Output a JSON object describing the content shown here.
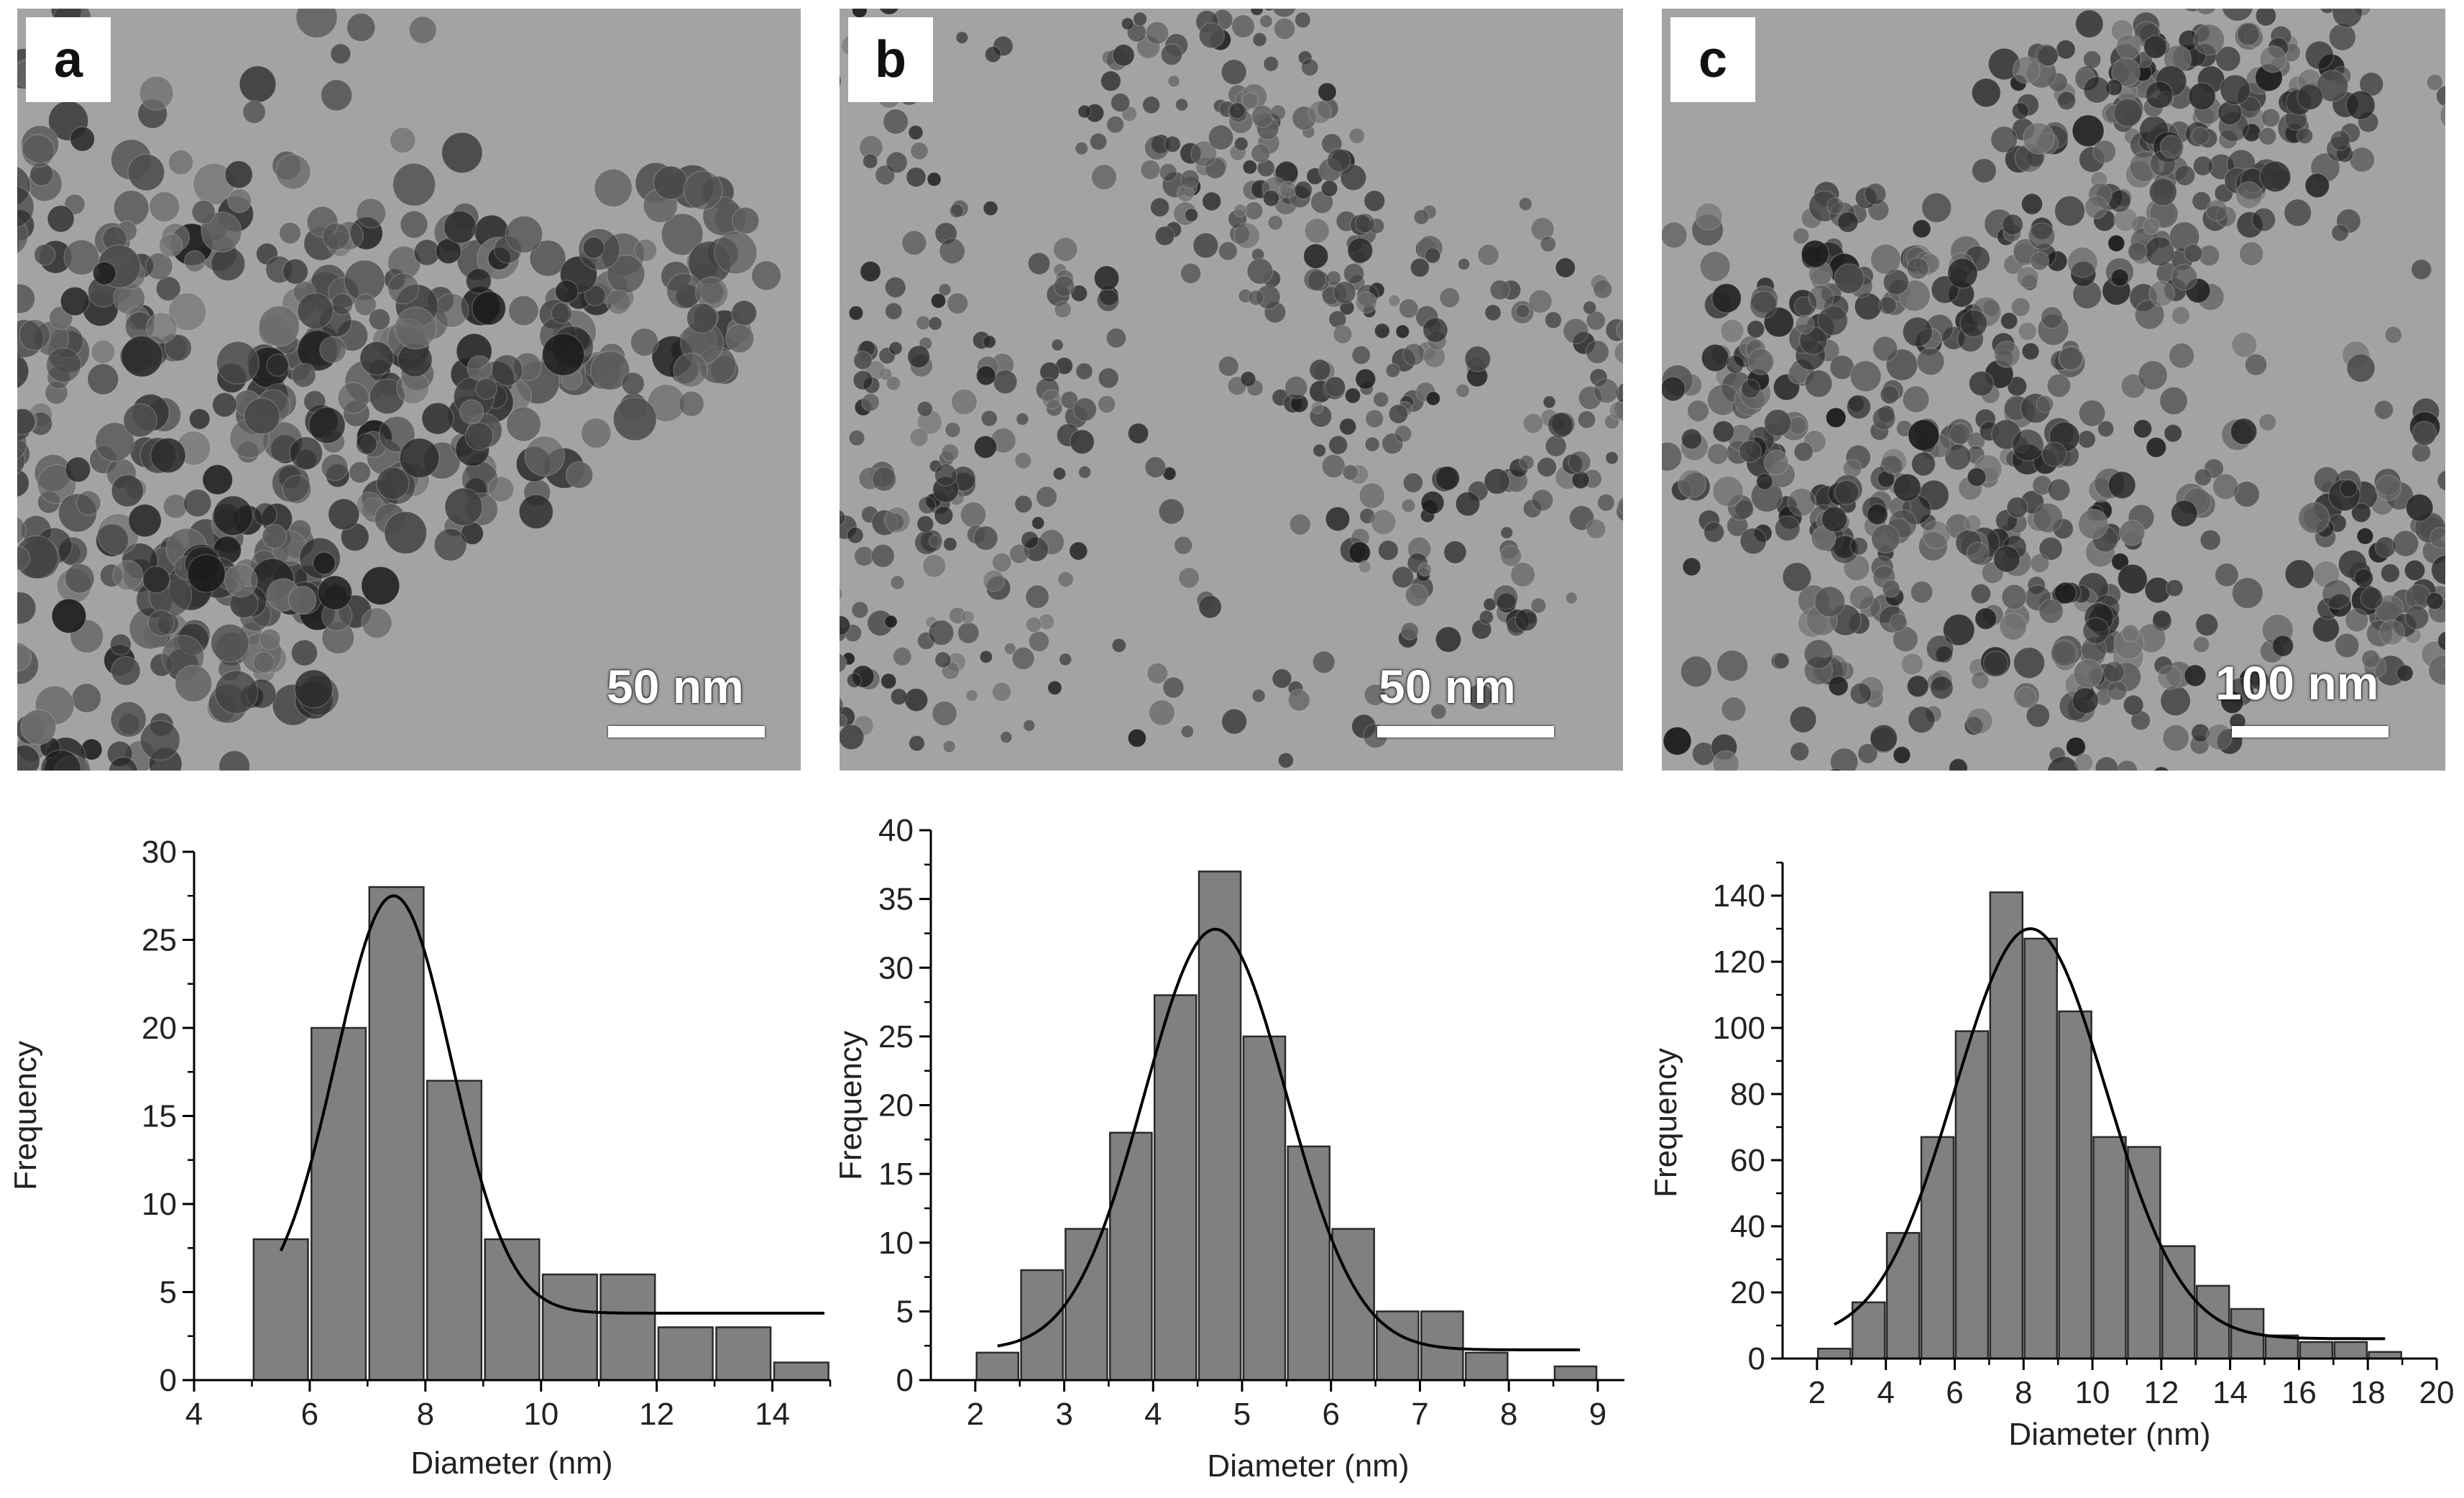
{
  "panels": [
    {
      "label": "a",
      "scale": "50 nm"
    },
    {
      "label": "b",
      "scale": "50 nm"
    },
    {
      "label": "c",
      "scale": "100 nm"
    }
  ],
  "colors": {
    "bar_fill": "#808080",
    "bar_stroke": "#2a2a2a",
    "fit_line": "#000000",
    "axis": "#000000"
  },
  "chart_data": [
    {
      "type": "bar",
      "xlabel": "Diameter (nm)",
      "ylabel": "Frequency",
      "xlim": [
        4,
        15
      ],
      "ylim": [
        0,
        30
      ],
      "xticks": [
        4,
        6,
        8,
        10,
        12,
        14
      ],
      "yticks": [
        0,
        5,
        10,
        15,
        20,
        25,
        30
      ],
      "bin_width": 1.0,
      "x": [
        5.5,
        6.5,
        7.5,
        8.5,
        9.5,
        10.5,
        11.5,
        12.5,
        13.5,
        14.5
      ],
      "values": [
        8,
        20,
        28,
        17,
        8,
        6,
        6,
        3,
        3,
        1
      ],
      "fit": {
        "type": "gaussian",
        "y0": 3.8,
        "amplitude": 23.7,
        "center": 7.45,
        "sigma": 1.0,
        "x_range": [
          5.5,
          14.9
        ]
      }
    },
    {
      "type": "bar",
      "xlabel": "Diameter (nm)",
      "ylabel": "Frequency",
      "xlim": [
        1.5,
        9.3
      ],
      "ylim": [
        0,
        40
      ],
      "xticks": [
        2,
        3,
        4,
        5,
        6,
        7,
        8,
        9
      ],
      "yticks": [
        0,
        5,
        10,
        15,
        20,
        25,
        30,
        35,
        40
      ],
      "bin_width": 0.5,
      "x": [
        2.25,
        2.75,
        3.25,
        3.75,
        4.25,
        4.75,
        5.25,
        5.75,
        6.25,
        6.75,
        7.25,
        7.75,
        8.75
      ],
      "values": [
        2,
        8,
        11,
        18,
        28,
        37,
        25,
        17,
        11,
        5,
        5,
        2,
        1
      ],
      "fit": {
        "type": "gaussian",
        "y0": 2.2,
        "amplitude": 30.6,
        "center": 4.7,
        "sigma": 0.8,
        "x_range": [
          2.25,
          8.8
        ]
      }
    },
    {
      "type": "bar",
      "xlabel": "Diameter (nm)",
      "ylabel": "Frequency",
      "xlim": [
        1,
        20
      ],
      "ylim": [
        0,
        150
      ],
      "xticks": [
        2,
        4,
        6,
        8,
        10,
        12,
        14,
        16,
        18,
        20
      ],
      "yticks": [
        0,
        20,
        40,
        60,
        80,
        100,
        120,
        140
      ],
      "bin_width": 1.0,
      "x": [
        2.5,
        3.5,
        4.5,
        5.5,
        6.5,
        7.5,
        8.5,
        9.5,
        10.5,
        11.5,
        12.5,
        13.5,
        14.5,
        15.5,
        16.5,
        17.5,
        18.5
      ],
      "values": [
        3,
        17,
        38,
        67,
        99,
        141,
        127,
        105,
        67,
        64,
        34,
        22,
        15,
        7,
        5,
        5,
        2
      ],
      "fit": {
        "type": "gaussian",
        "y0": 6,
        "amplitude": 124,
        "center": 8.2,
        "sigma": 2.2,
        "x_range": [
          2.5,
          18.5
        ]
      }
    }
  ]
}
